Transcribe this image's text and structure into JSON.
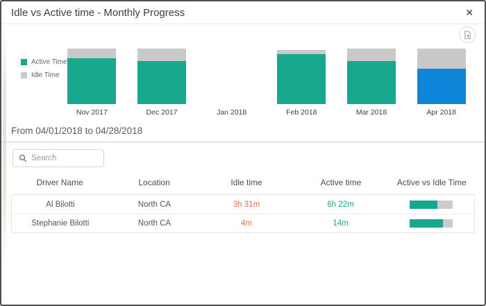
{
  "dialog": {
    "title": "Idle vs Active time - Monthly Progress",
    "close_glyph": "✕"
  },
  "chart_data": {
    "type": "bar",
    "stacked": true,
    "title": "Idle vs Active time - Monthly Progress",
    "categories": [
      "Nov 2017",
      "Dec 2017",
      "Jan 2018",
      "Feb 2018",
      "Mar 2018",
      "Apr 2018"
    ],
    "series": [
      {
        "name": "Active Time",
        "values_pct": [
          82,
          78,
          0,
          90,
          78,
          64
        ]
      },
      {
        "name": "Idle Time",
        "values_pct": [
          18,
          22,
          0,
          7,
          22,
          36
        ]
      }
    ],
    "selected_category": "Apr 2018",
    "legend_position": "left",
    "ylim_pct": [
      0,
      100
    ],
    "colors": {
      "active": "#17a78c",
      "idle": "#c9c9c9",
      "selected_active": "#0d85d8"
    }
  },
  "filter": {
    "date_range": "From 04/01/2018 to 04/28/2018"
  },
  "search": {
    "placeholder": "Search"
  },
  "table": {
    "headers": [
      "Driver Name",
      "Location",
      "Idle time",
      "Active time",
      "Active vs Idle Time"
    ],
    "rows": [
      {
        "driver": "Al Bilotti",
        "location": "North CA",
        "idle": "3h 31m",
        "active": "6h 22m",
        "active_pct": 64
      },
      {
        "driver": "Stephanie Bilotti",
        "location": "North CA",
        "idle": "4m",
        "active": "14m",
        "active_pct": 78
      }
    ]
  },
  "colors": {
    "idle_value_text": "#e2734f",
    "active_value_text": "#17a78c",
    "ratio_fill": "#17a78c",
    "ratio_track": "#cbcbcb"
  }
}
